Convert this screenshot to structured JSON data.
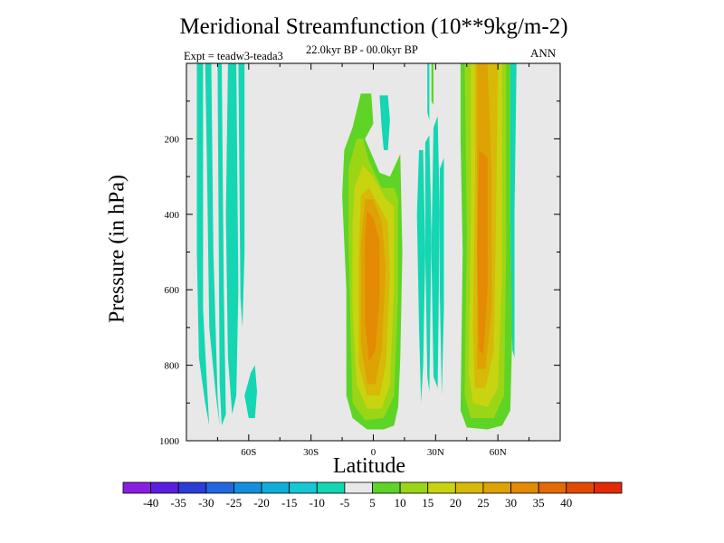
{
  "chart_data": {
    "type": "contour",
    "title": "Meridional Streamfunction (10**9kg/m-2)",
    "subtitle": "22.0kyr BP - 00.0kyr BP",
    "left_label": "Expt = teadw3-teada3",
    "right_label": "ANN",
    "xlabel": "Latitude",
    "ylabel": "Pressure (in hPa)",
    "xlim": [
      -90,
      90
    ],
    "ylim": [
      0,
      1000
    ],
    "y_reversed": true,
    "x_ticks": [
      {
        "value": -60,
        "label": "60S"
      },
      {
        "value": -30,
        "label": "30S"
      },
      {
        "value": 0,
        "label": "0"
      },
      {
        "value": 30,
        "label": "30N"
      },
      {
        "value": 60,
        "label": "60N"
      }
    ],
    "y_ticks": [
      {
        "value": 200,
        "label": "200"
      },
      {
        "value": 400,
        "label": "400"
      },
      {
        "value": 600,
        "label": "600"
      },
      {
        "value": 800,
        "label": "800"
      },
      {
        "value": 1000,
        "label": "1000"
      }
    ],
    "levels": [
      -45,
      -40,
      -35,
      -30,
      -25,
      -20,
      -15,
      -10,
      -5,
      5,
      10,
      15,
      20,
      25,
      30,
      35,
      40,
      45
    ],
    "level_labels": [
      "-40",
      "-35",
      "-30",
      "-25",
      "-20",
      "-15",
      "-10",
      "-5",
      "5",
      "10",
      "15",
      "20",
      "25",
      "30",
      "35",
      "40"
    ],
    "colors": [
      "#8a1ee0",
      "#5a1ee0",
      "#2a3ed6",
      "#2168e0",
      "#148fe0",
      "#10aedc",
      "#16c7d6",
      "#14d6b2",
      "#e8e8e8",
      "#5ed426",
      "#9ad616",
      "#c8d410",
      "#d8b808",
      "#dea204",
      "#e48a04",
      "#e46a04",
      "#e24a04",
      "#e22a04"
    ],
    "plot_background": "#e8e8e8",
    "features": [
      {
        "name": "southern polar negative bands",
        "lat_range": [
          -85,
          -60
        ],
        "pressure_range": [
          0,
          960
        ],
        "value": -10
      },
      {
        "name": "southern isolated negative cell",
        "lat_range": [
          -62,
          -57
        ],
        "pressure_range": [
          840,
          940
        ],
        "value": -10
      },
      {
        "name": "tropical positive cell",
        "lat_range": [
          -13,
          13
        ],
        "pressure_range": [
          80,
          970
        ],
        "max_value": 30,
        "center_pressure": 500
      },
      {
        "name": "tropical upper negative blob",
        "lat_range": [
          3,
          8
        ],
        "pressure_range": [
          80,
          230
        ],
        "value": -10
      },
      {
        "name": "northern subtropical negative bands",
        "lat_range": [
          22,
          34
        ],
        "pressure_range": [
          120,
          920
        ],
        "value": -10
      },
      {
        "name": "northern midlatitude positive cell",
        "lat_range": [
          42,
          67
        ],
        "pressure_range": [
          0,
          970
        ],
        "max_value": 30,
        "center_pressure": 520
      },
      {
        "name": "northern high-latitude negative strip",
        "lat_range": [
          66,
          69
        ],
        "pressure_range": [
          0,
          780
        ],
        "value": -10
      }
    ]
  }
}
